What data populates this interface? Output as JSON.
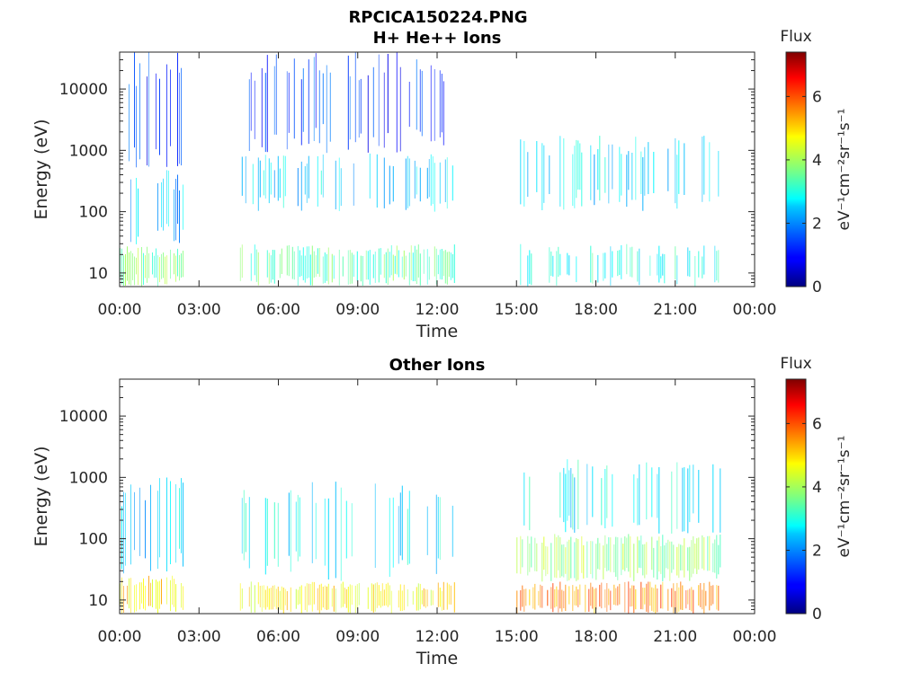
{
  "figure_title": "RPCICA150224.PNG",
  "chart_data": [
    {
      "type": "heatmap",
      "title": "H+ He++ Ions",
      "xlabel": "Time",
      "ylabel": "Energy (eV)",
      "y_scale": "log",
      "ylim": [
        6,
        40000
      ],
      "xlim": [
        "00:00",
        "24:00"
      ],
      "x_ticks": [
        "00:00",
        "03:00",
        "06:00",
        "09:00",
        "12:00",
        "15:00",
        "18:00",
        "21:00",
        "00:00"
      ],
      "y_ticks": [
        10,
        100,
        1000,
        10000
      ],
      "y_tick_labels": [
        "10",
        "100",
        "1000",
        "10000"
      ],
      "colorbar": {
        "label_top": "Flux",
        "unit": "eV⁻¹cm⁻²sr⁻¹s⁻¹",
        "range": [
          0,
          7.4
        ],
        "ticks": [
          0,
          2,
          4,
          6
        ],
        "tick_labels": [
          "0",
          "2",
          "4",
          "6"
        ],
        "colormap": "jet"
      },
      "data_segments": [
        {
          "start_hours": 0.0,
          "end_hours": 2.4
        },
        {
          "start_hours": 4.55,
          "end_hours": 12.7
        },
        {
          "start_hours": 15.0,
          "end_hours": 22.7
        }
      ],
      "bands": [
        {
          "segment": 0,
          "e_low": 6,
          "e_high": 28,
          "flux": 3.6
        },
        {
          "segment": 0,
          "e_low": 28,
          "e_high": 500,
          "flux": 2.3
        },
        {
          "segment": 0,
          "e_low": 500,
          "e_high": 40000,
          "flux": 1.3
        },
        {
          "segment": 1,
          "e_low": 6,
          "e_high": 30,
          "flux": 3.4
        },
        {
          "segment": 1,
          "e_low": 100,
          "e_high": 900,
          "flux": 2.5
        },
        {
          "segment": 1,
          "e_low": 900,
          "e_high": 40000,
          "flux": 1.3
        },
        {
          "segment": 2,
          "e_low": 6,
          "e_high": 30,
          "flux": 3.0
        },
        {
          "segment": 2,
          "e_low": 100,
          "e_high": 1800,
          "flux": 2.6
        }
      ]
    },
    {
      "type": "heatmap",
      "title": "Other Ions",
      "xlabel": "Time",
      "ylabel": "Energy (eV)",
      "y_scale": "log",
      "ylim": [
        6,
        40000
      ],
      "xlim": [
        "00:00",
        "24:00"
      ],
      "x_ticks": [
        "00:00",
        "03:00",
        "06:00",
        "09:00",
        "12:00",
        "15:00",
        "18:00",
        "21:00",
        "00:00"
      ],
      "y_ticks": [
        10,
        100,
        1000,
        10000
      ],
      "y_tick_labels": [
        "10",
        "100",
        "1000",
        "10000"
      ],
      "colorbar": {
        "label_top": "Flux",
        "unit": "eV⁻¹cm⁻²sr⁻¹s⁻¹",
        "range": [
          0,
          7.4
        ],
        "ticks": [
          0,
          2,
          4,
          6
        ],
        "tick_labels": [
          "0",
          "2",
          "4",
          "6"
        ],
        "colormap": "jet"
      },
      "data_segments": [
        {
          "start_hours": 0.0,
          "end_hours": 2.4
        },
        {
          "start_hours": 4.55,
          "end_hours": 12.7
        },
        {
          "start_hours": 15.0,
          "end_hours": 22.7
        }
      ],
      "bands": [
        {
          "segment": 0,
          "e_low": 6,
          "e_high": 25,
          "flux": 4.8
        },
        {
          "segment": 0,
          "e_low": 25,
          "e_high": 1000,
          "flux": 2.5
        },
        {
          "segment": 1,
          "e_low": 6,
          "e_high": 20,
          "flux": 4.7
        },
        {
          "segment": 1,
          "e_low": 20,
          "e_high": 900,
          "flux": 2.7
        },
        {
          "segment": 2,
          "e_low": 6,
          "e_high": 20,
          "flux": 5.5
        },
        {
          "segment": 2,
          "e_low": 20,
          "e_high": 120,
          "flux": 3.8
        },
        {
          "segment": 2,
          "e_low": 120,
          "e_high": 2000,
          "flux": 2.8
        }
      ]
    }
  ]
}
